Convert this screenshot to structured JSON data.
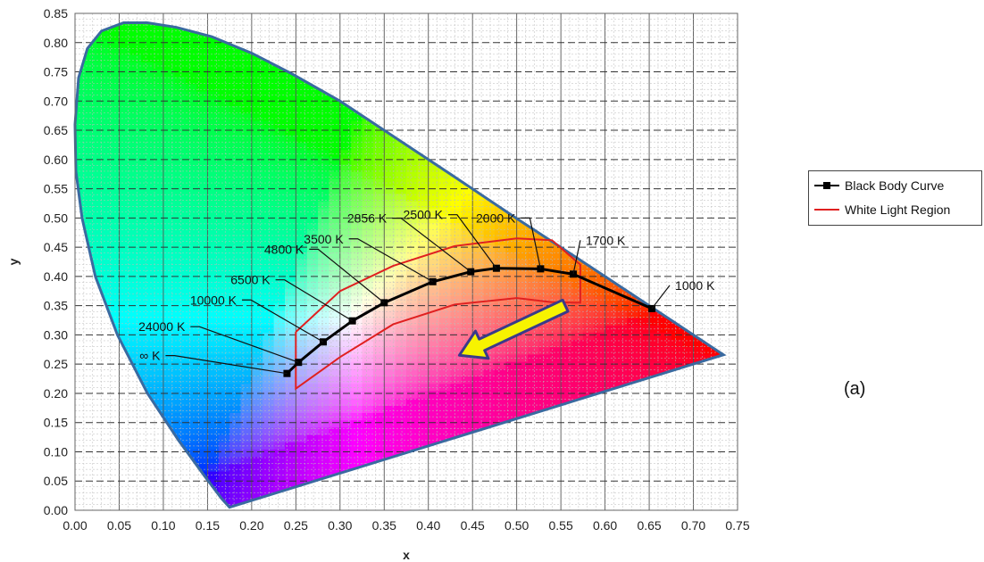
{
  "chart_data": {
    "type": "line",
    "title": "",
    "xlabel": "x",
    "ylabel": "y",
    "xlim": [
      0.0,
      0.75
    ],
    "ylim": [
      0.0,
      0.85
    ],
    "grid": true,
    "legend_position": "right",
    "x_ticks": [
      "0.00",
      "0.05",
      "0.10",
      "0.15",
      "0.20",
      "0.25",
      "0.30",
      "0.35",
      "0.40",
      "0.45",
      "0.50",
      "0.55",
      "0.60",
      "0.65",
      "0.70",
      "0.75"
    ],
    "y_ticks": [
      "0.00",
      "0.05",
      "0.10",
      "0.15",
      "0.20",
      "0.25",
      "0.30",
      "0.35",
      "0.40",
      "0.45",
      "0.50",
      "0.55",
      "0.60",
      "0.65",
      "0.70",
      "0.75",
      "0.80",
      "0.85"
    ],
    "spectral_locus": {
      "color": "#3a6aa0",
      "x": [
        0.175,
        0.166,
        0.146,
        0.117,
        0.082,
        0.048,
        0.023,
        0.008,
        0.001,
        0.0,
        0.004,
        0.014,
        0.03,
        0.055,
        0.082,
        0.115,
        0.155,
        0.2,
        0.245,
        0.3,
        0.36,
        0.43,
        0.5,
        0.56,
        0.62,
        0.68,
        0.734
      ],
      "y": [
        0.005,
        0.02,
        0.06,
        0.12,
        0.2,
        0.3,
        0.4,
        0.5,
        0.58,
        0.66,
        0.74,
        0.79,
        0.82,
        0.834,
        0.834,
        0.826,
        0.81,
        0.782,
        0.747,
        0.7,
        0.64,
        0.57,
        0.499,
        0.44,
        0.38,
        0.32,
        0.266
      ]
    },
    "series": [
      {
        "name": "Black Body Curve",
        "color": "#000000",
        "marker": "square",
        "points": [
          {
            "x": 0.24,
            "y": 0.234,
            "label": "∞ K"
          },
          {
            "x": 0.253,
            "y": 0.253,
            "label": "24000 K"
          },
          {
            "x": 0.281,
            "y": 0.288,
            "label": "10000 K"
          },
          {
            "x": 0.314,
            "y": 0.324,
            "label": "6500 K"
          },
          {
            "x": 0.35,
            "y": 0.355,
            "label": "4800 K"
          },
          {
            "x": 0.405,
            "y": 0.391,
            "label": "3500 K"
          },
          {
            "x": 0.448,
            "y": 0.408,
            "label": "2856 K"
          },
          {
            "x": 0.477,
            "y": 0.414,
            "label": "2500 K"
          },
          {
            "x": 0.527,
            "y": 0.413,
            "label": "2000 K"
          },
          {
            "x": 0.564,
            "y": 0.404,
            "label": "1700 K"
          },
          {
            "x": 0.653,
            "y": 0.345,
            "label": "1000 K"
          }
        ]
      },
      {
        "name": "White Light Region",
        "color": "#e02020",
        "x": [
          0.25,
          0.3,
          0.36,
          0.43,
          0.5,
          0.54,
          0.572,
          0.572,
          0.54,
          0.5,
          0.43,
          0.36,
          0.3,
          0.25,
          0.25
        ],
        "y": [
          0.305,
          0.375,
          0.418,
          0.452,
          0.465,
          0.462,
          0.42,
          0.355,
          0.356,
          0.363,
          0.352,
          0.318,
          0.262,
          0.208,
          0.305
        ]
      }
    ],
    "annotation_arrow": {
      "color": "#f7f300",
      "outline": "#3a3a8a",
      "from": {
        "x": 0.555,
        "y": 0.35
      },
      "to": {
        "x": 0.435,
        "y": 0.265
      }
    },
    "panel_label": "(a)"
  }
}
